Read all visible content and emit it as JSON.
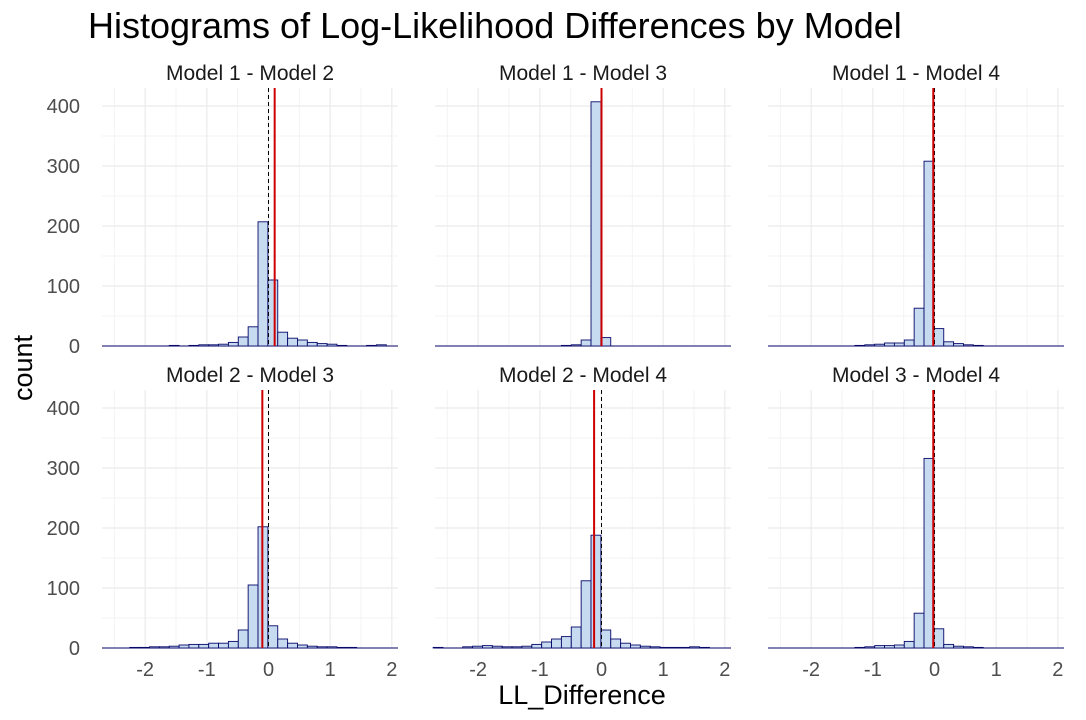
{
  "chart_data": {
    "type": "histogram-facets",
    "title": "Histograms of Log-Likelihood Differences by Model",
    "xlabel": "LL_Difference",
    "ylabel": "count",
    "xlim": [
      -2.7,
      2.1
    ],
    "ylim": [
      0,
      430
    ],
    "x_ticks": [
      -2,
      -1,
      0,
      1,
      2
    ],
    "x_tick_labels": [
      "-2",
      "-1",
      "0",
      "1",
      "2"
    ],
    "y_ticks": [
      0,
      100,
      200,
      300,
      400
    ],
    "y_tick_labels": [
      "0",
      "100",
      "200",
      "300",
      "400"
    ],
    "bin_width": 0.16,
    "grid": true,
    "colors": {
      "bar_fill": "#c6dbef",
      "bar_stroke": "#08086b",
      "mean_line": "#cc0000",
      "zero_line": "#000000",
      "grid": "#ebebeb"
    },
    "facets": [
      {
        "label": "Model 1 - Model 2",
        "mean": 0.1,
        "bins": [
          {
            "x": -2.65,
            "count": 0
          },
          {
            "x": -2.49,
            "count": 0
          },
          {
            "x": -2.33,
            "count": 0
          },
          {
            "x": -2.17,
            "count": 0
          },
          {
            "x": -2.01,
            "count": 0
          },
          {
            "x": -1.85,
            "count": 0
          },
          {
            "x": -1.69,
            "count": 0
          },
          {
            "x": -1.53,
            "count": 1
          },
          {
            "x": -1.37,
            "count": 0
          },
          {
            "x": -1.21,
            "count": 1
          },
          {
            "x": -1.05,
            "count": 2
          },
          {
            "x": -0.89,
            "count": 2
          },
          {
            "x": -0.73,
            "count": 3
          },
          {
            "x": -0.57,
            "count": 6
          },
          {
            "x": -0.41,
            "count": 15
          },
          {
            "x": -0.25,
            "count": 32
          },
          {
            "x": -0.09,
            "count": 207
          },
          {
            "x": 0.07,
            "count": 110
          },
          {
            "x": 0.23,
            "count": 23
          },
          {
            "x": 0.39,
            "count": 13
          },
          {
            "x": 0.55,
            "count": 10
          },
          {
            "x": 0.71,
            "count": 6
          },
          {
            "x": 0.87,
            "count": 4
          },
          {
            "x": 1.03,
            "count": 3
          },
          {
            "x": 1.19,
            "count": 1
          },
          {
            "x": 1.35,
            "count": 0
          },
          {
            "x": 1.51,
            "count": 0
          },
          {
            "x": 1.67,
            "count": 1
          },
          {
            "x": 1.83,
            "count": 2
          }
        ]
      },
      {
        "label": "Model 1 - Model 3",
        "mean": 0.0,
        "bins": [
          {
            "x": -0.57,
            "count": 1
          },
          {
            "x": -0.41,
            "count": 2
          },
          {
            "x": -0.25,
            "count": 10
          },
          {
            "x": -0.09,
            "count": 407
          },
          {
            "x": 0.07,
            "count": 14
          },
          {
            "x": 0.23,
            "count": 0
          },
          {
            "x": 0.39,
            "count": 0
          },
          {
            "x": 0.55,
            "count": 0
          },
          {
            "x": 0.71,
            "count": 0
          }
        ]
      },
      {
        "label": "Model 1 - Model 4",
        "mean": -0.02,
        "bins": [
          {
            "x": -1.21,
            "count": 1
          },
          {
            "x": -1.05,
            "count": 2
          },
          {
            "x": -0.89,
            "count": 3
          },
          {
            "x": -0.73,
            "count": 5
          },
          {
            "x": -0.57,
            "count": 5
          },
          {
            "x": -0.41,
            "count": 10
          },
          {
            "x": -0.25,
            "count": 63
          },
          {
            "x": -0.09,
            "count": 308
          },
          {
            "x": 0.07,
            "count": 29
          },
          {
            "x": 0.23,
            "count": 7
          },
          {
            "x": 0.39,
            "count": 4
          },
          {
            "x": 0.55,
            "count": 2
          },
          {
            "x": 0.71,
            "count": 1
          },
          {
            "x": 0.87,
            "count": 0
          }
        ]
      },
      {
        "label": "Model 2 - Model 3",
        "mean": -0.1,
        "bins": [
          {
            "x": -2.17,
            "count": 1
          },
          {
            "x": -2.01,
            "count": 1
          },
          {
            "x": -1.85,
            "count": 2
          },
          {
            "x": -1.69,
            "count": 2
          },
          {
            "x": -1.53,
            "count": 3
          },
          {
            "x": -1.37,
            "count": 5
          },
          {
            "x": -1.21,
            "count": 6
          },
          {
            "x": -1.05,
            "count": 6
          },
          {
            "x": -0.89,
            "count": 8
          },
          {
            "x": -0.73,
            "count": 8
          },
          {
            "x": -0.57,
            "count": 11
          },
          {
            "x": -0.41,
            "count": 30
          },
          {
            "x": -0.25,
            "count": 105
          },
          {
            "x": -0.09,
            "count": 202
          },
          {
            "x": 0.07,
            "count": 37
          },
          {
            "x": 0.23,
            "count": 15
          },
          {
            "x": 0.39,
            "count": 8
          },
          {
            "x": 0.55,
            "count": 5
          },
          {
            "x": 0.71,
            "count": 3
          },
          {
            "x": 0.87,
            "count": 2
          },
          {
            "x": 1.03,
            "count": 2
          },
          {
            "x": 1.19,
            "count": 1
          },
          {
            "x": 1.35,
            "count": 1
          },
          {
            "x": 1.51,
            "count": 0
          }
        ]
      },
      {
        "label": "Model 2 - Model 4",
        "mean": -0.12,
        "bins": [
          {
            "x": -2.65,
            "count": 1
          },
          {
            "x": -2.49,
            "count": 0
          },
          {
            "x": -2.33,
            "count": 0
          },
          {
            "x": -2.17,
            "count": 2
          },
          {
            "x": -2.01,
            "count": 3
          },
          {
            "x": -1.85,
            "count": 4
          },
          {
            "x": -1.69,
            "count": 3
          },
          {
            "x": -1.53,
            "count": 2
          },
          {
            "x": -1.37,
            "count": 2
          },
          {
            "x": -1.21,
            "count": 3
          },
          {
            "x": -1.05,
            "count": 6
          },
          {
            "x": -0.89,
            "count": 10
          },
          {
            "x": -0.73,
            "count": 15
          },
          {
            "x": -0.57,
            "count": 19
          },
          {
            "x": -0.41,
            "count": 35
          },
          {
            "x": -0.25,
            "count": 112
          },
          {
            "x": -0.09,
            "count": 188
          },
          {
            "x": 0.07,
            "count": 30
          },
          {
            "x": 0.23,
            "count": 15
          },
          {
            "x": 0.39,
            "count": 8
          },
          {
            "x": 0.55,
            "count": 5
          },
          {
            "x": 0.71,
            "count": 3
          },
          {
            "x": 0.87,
            "count": 2
          },
          {
            "x": 1.03,
            "count": 1
          },
          {
            "x": 1.19,
            "count": 1
          },
          {
            "x": 1.35,
            "count": 1
          },
          {
            "x": 1.51,
            "count": 2
          },
          {
            "x": 1.67,
            "count": 1
          }
        ]
      },
      {
        "label": "Model 3 - Model 4",
        "mean": -0.02,
        "bins": [
          {
            "x": -1.21,
            "count": 1
          },
          {
            "x": -1.05,
            "count": 2
          },
          {
            "x": -0.89,
            "count": 4
          },
          {
            "x": -0.73,
            "count": 4
          },
          {
            "x": -0.57,
            "count": 5
          },
          {
            "x": -0.41,
            "count": 11
          },
          {
            "x": -0.25,
            "count": 58
          },
          {
            "x": -0.09,
            "count": 316
          },
          {
            "x": 0.07,
            "count": 32
          },
          {
            "x": 0.23,
            "count": 6
          },
          {
            "x": 0.39,
            "count": 3
          },
          {
            "x": 0.55,
            "count": 2
          },
          {
            "x": 0.71,
            "count": 1
          },
          {
            "x": 0.87,
            "count": 0
          }
        ]
      }
    ]
  }
}
